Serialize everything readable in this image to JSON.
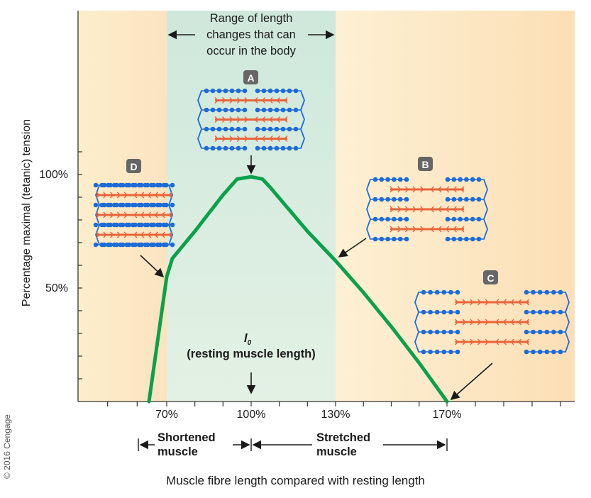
{
  "chart_data": {
    "type": "line",
    "ylabel": "Percentage maximal (tetanic) tension",
    "xlabel": "Muscle fibre length compared with resting length",
    "x_ticks": [
      "70%",
      "100%",
      "130%",
      "170%"
    ],
    "y_ticks": [
      "50%",
      "100%"
    ],
    "series": [
      {
        "x": [
          64,
          70,
          72,
          76,
          80,
          90,
          95,
          100,
          104,
          107,
          120,
          130,
          140,
          150,
          160,
          170
        ],
        "y": [
          0,
          55,
          63,
          69,
          75,
          91,
          98,
          99,
          98,
          94,
          75,
          62,
          48,
          33,
          17,
          0
        ]
      }
    ],
    "range_label": "Range of length changes that can occur in the body",
    "range_label_lines": [
      "Range of length",
      "changes that can",
      "occur in the body"
    ],
    "resting_label_symbol": "l",
    "resting_label_sub": "0",
    "resting_label_text": "(resting muscle length)",
    "shortened_lines": [
      "Shortened",
      "muscle"
    ],
    "stretched_lines": [
      "Stretched",
      "muscle"
    ],
    "callouts": [
      "A",
      "B",
      "C",
      "D"
    ],
    "copyright": "© 2016 Cengage",
    "colors": {
      "curve": "#0aa14a",
      "left_band": "#fbe7c7",
      "middle_band": "#d7ecdf",
      "right_band": "#fbe7c7",
      "actin": "#1d6bd6",
      "myosin": "#e8643c",
      "badge": "#666666"
    }
  }
}
